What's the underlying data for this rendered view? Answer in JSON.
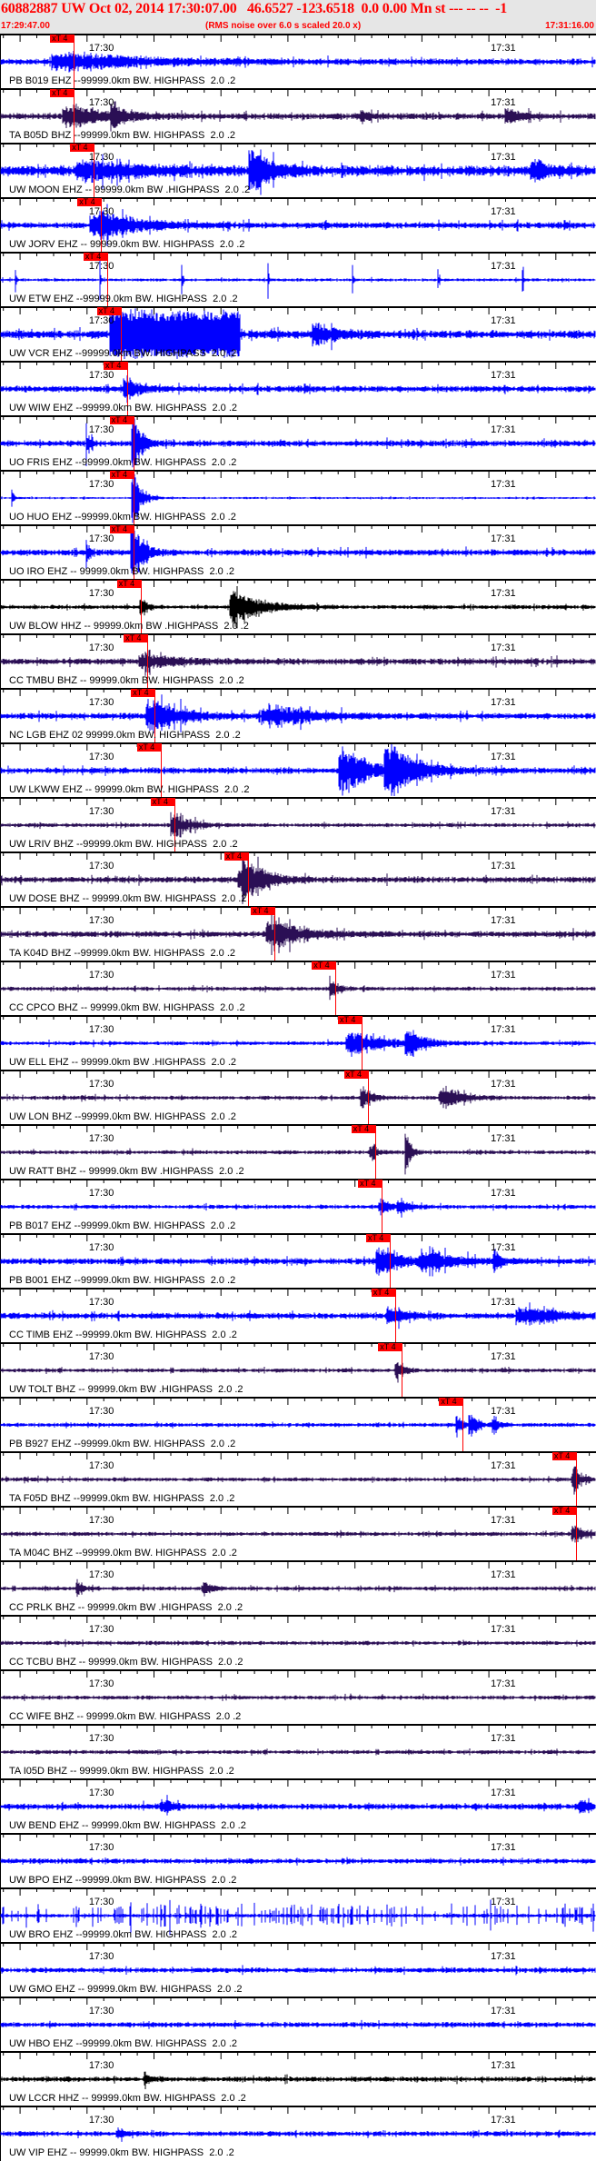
{
  "header": {
    "title": "60882887 UW Oct 02, 2014 17:30:07.00   46.6527 -123.6518  0.0 0.00 Mn st --- -- --  -1",
    "start_time": "17:29:47.00",
    "note": "(RMS noise over 6.0 s scaled 20.0 x)",
    "end_time": "17:31:16.00"
  },
  "axis": {
    "minute_labels": [
      "17:30",
      "17:31"
    ]
  },
  "pick_label": "xT 4",
  "colors": {
    "blue": "#0000ff",
    "purple": "#2b0f55",
    "black": "#000000",
    "pick": "#ff0000",
    "header_bg": "#e6e6e6"
  },
  "traces": [
    {
      "label": "PB B019 EHZ --99999.0km BW. HIGHPASS  2.0 .2",
      "color": "blue",
      "pick": "17:29:58.0"
    },
    {
      "label": "TA B05D BHZ --99999.0km BW. HIGHPASS  2.0 .2",
      "color": "purple",
      "pick": "17:29:58.0"
    },
    {
      "label": "UW MOON EHZ -- 99999.0km BW .HIGHPASS  2.0 .2",
      "color": "blue",
      "pick": "17:30:01.0"
    },
    {
      "label": "UW JORV EHZ -- 99999.0km BW. HIGHPASS  2.0 .2",
      "color": "blue",
      "pick": "17:30:02.1"
    },
    {
      "label": "UW ETW EHZ --99999.0km BW. HIGHPASS  2.0 .2",
      "color": "blue",
      "pick": "17:30:03.0"
    },
    {
      "label": "UW VCR EHZ --99999.0km BW. HIGHPASS  2.0 .2",
      "color": "blue",
      "pick": "17:30:05.0"
    },
    {
      "label": "UW WIW EHZ --99999.0km BW. HIGHPASS  2.0 .2",
      "color": "blue",
      "pick": "17:30:06.0"
    },
    {
      "label": "UO FRIS EHZ --99999.0km BW. HIGHPASS  2.0 .2",
      "color": "blue",
      "pick": "17:30:06.9"
    },
    {
      "label": "UO HUO EHZ --99999.0km BW. HIGHPASS  2.0 .2",
      "color": "blue",
      "pick": "17:30:06.9"
    },
    {
      "label": "UO IRO EHZ -- 99999.0km BW. HIGHPASS  2.0 .2",
      "color": "blue",
      "pick": "17:30:06.9"
    },
    {
      "label": "UW BLOW HHZ -- 99999.0km BW .HIGHPASS  2.0 .2",
      "color": "black",
      "pick": "17:30:08.0"
    },
    {
      "label": "CC TMBU BHZ -- 99999.0km BW. HIGHPASS  2.0 .2",
      "color": "purple",
      "pick": "17:30:09.0"
    },
    {
      "label": "NC LGB EHZ 02 99999.0km BW. HIGHPASS  2.0 .2",
      "color": "blue",
      "pick": "17:30:10.1"
    },
    {
      "label": "UW LKWW EHZ -- 99999.0km BW. HIGHPASS  2.0 .2",
      "color": "blue",
      "pick": "17:30:11.0"
    },
    {
      "label": "UW LRIV BHZ --99999.0km BW. HIGHPASS  2.0 .2",
      "color": "purple",
      "pick": "17:30:13.0"
    },
    {
      "label": "UW DOSE BHZ -- 99999.0km BW. HIGHPASS  2.0 .2",
      "color": "purple",
      "pick": "17:30:24.0"
    },
    {
      "label": "TA K04D BHZ --99999.0km BW. HIGHPASS  2.0 .2",
      "color": "purple",
      "pick": "17:30:28.0"
    },
    {
      "label": "CC CPCO BHZ -- 99999.0km BW. HIGHPASS  2.0 .2",
      "color": "purple",
      "pick": "17:30:37.1"
    },
    {
      "label": "UW ELL EHZ -- 99999.0km BW .HIGHPASS  2.0 .2",
      "color": "blue",
      "pick": "17:30:41.0"
    },
    {
      "label": "UW LON BHZ --99999.0km BW. HIGHPASS  2.0 .2",
      "color": "purple",
      "pick": "17:30:41.9"
    },
    {
      "label": "UW RATT BHZ -- 99999.0km BW .HIGHPASS  2.0 .2",
      "color": "purple",
      "pick": "17:30:43.0"
    },
    {
      "label": "PB B017 EHZ --99999.0km BW. HIGHPASS  2.0 .2",
      "color": "blue",
      "pick": "17:30:44.0"
    },
    {
      "label": "PB B001 EHZ --99999.0km BW. HIGHPASS  2.0 .2",
      "color": "blue",
      "pick": "17:30:45.2"
    },
    {
      "label": "CC TIMB EHZ --99999.0km BW. HIGHPASS  2.0 .2",
      "color": "blue",
      "pick": "17:30:46.0"
    },
    {
      "label": "UW TOLT BHZ -- 99999.0km BW .HIGHPASS  2.0 .2",
      "color": "purple",
      "pick": "17:30:47.0"
    },
    {
      "label": "PB B927 EHZ --99999.0km BW. HIGHPASS  2.0 .2",
      "color": "blue",
      "pick": "17:30:56.1"
    },
    {
      "label": "TA F05D BHZ --99999.0km BW. HIGHPASS  2.0 .2",
      "color": "purple",
      "pick": "17:31:13.0"
    },
    {
      "label": "TA M04C BHZ --99999.0km BW. HIGHPASS  2.0 .2",
      "color": "purple",
      "pick": "17:31:13.0"
    },
    {
      "label": "CC PRLK BHZ -- 99999.0km BW .HIGHPASS  2.0 .2",
      "color": "purple",
      "pick": null
    },
    {
      "label": "CC TCBU BHZ -- 99999.0km BW. HIGHPASS  2.0 .2",
      "color": "purple",
      "pick": null
    },
    {
      "label": "CC WIFE BHZ -- 99999.0km BW. HIGHPASS  2.0 .2",
      "color": "purple",
      "pick": null
    },
    {
      "label": "TA I05D BHZ -- 99999.0km BW. HIGHPASS  2.0 .2",
      "color": "purple",
      "pick": null
    },
    {
      "label": "UW BEND EHZ -- 99999.0km BW. HIGHPASS  2.0 .2",
      "color": "blue",
      "pick": null
    },
    {
      "label": "UW BPO EHZ --99999.0km BW. HIGHPASS  2.0 .2",
      "color": "blue",
      "pick": null
    },
    {
      "label": "UW BRO EHZ --99999.0km BW. HIGHPASS  2.0 .2",
      "color": "blue",
      "pick": null
    },
    {
      "label": "UW GMO EHZ -- 99999.0km BW. HIGHPASS  2.0 .2",
      "color": "blue",
      "pick": null
    },
    {
      "label": "UW HBO EHZ --99999.0km BW. HIGHPASS  2.0 .2",
      "color": "blue",
      "pick": null
    },
    {
      "label": "UW LCCR HHZ -- 99999.0km BW. HIGHPASS  2.0 .2",
      "color": "black",
      "pick": null
    },
    {
      "label": "UW VIP EHZ -- 99999.0km BW. HIGHPASS  2.0 .2",
      "color": "blue",
      "pick": null
    }
  ]
}
